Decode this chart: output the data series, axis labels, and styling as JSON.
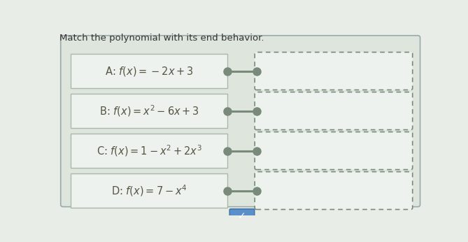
{
  "title": "Match the polynomial with its end behavior.",
  "page_bg": "#e8ede8",
  "panel_bg": "#dde5dc",
  "left_box_bg": "#eef2ee",
  "left_box_edge": "#aab8aa",
  "right_box_bg": "#eef2ee",
  "right_box_edge": "#7a8a7a",
  "left_labels": [
    "A: $f(x) = -2x + 3$",
    "B: $f(x) = x^2 - 6x + 3$",
    "C: $f(x) = 1 - x^2 + 2x^3$",
    "D: $f(x) = 7 - x^4$"
  ],
  "connector_color": "#7a8a7a",
  "connector_circle_color": "#7a8a7a",
  "title_fontsize": 9.5,
  "label_fontsize": 10.5,
  "chevron_bg": "#5b8fc9",
  "chevron_edge": "#3a6fa0"
}
